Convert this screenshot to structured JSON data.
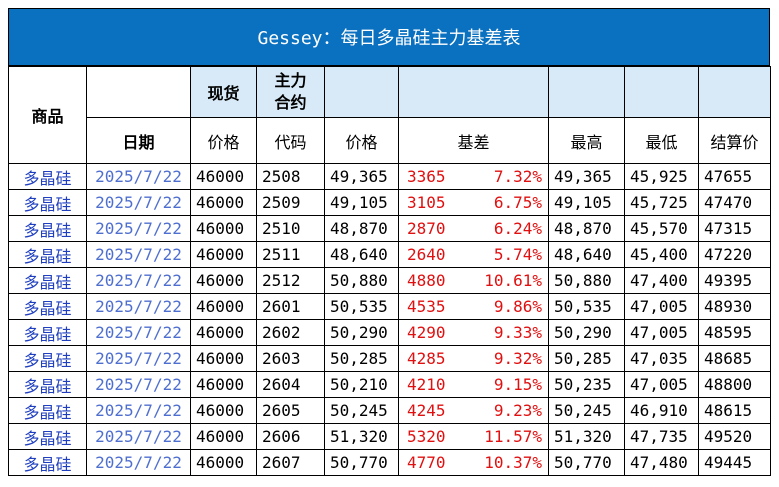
{
  "title": "Gessey：每日多晶硅主力基差表",
  "header": {
    "product": "商品",
    "spot": "现货",
    "contract_main": "主力\n合约",
    "date": "日期",
    "spot_price": "价格",
    "code": "代码",
    "price": "价格",
    "basis": "基差",
    "high": "最高",
    "low": "最低",
    "settle": "结算价"
  },
  "rows": [
    {
      "product": "多晶硅",
      "date": "2025/7/22",
      "spot": "46000",
      "code": "2508",
      "price": "49,365",
      "basis": "3365",
      "pct": "7.32%",
      "high": "49,365",
      "low": "45,925",
      "settle": "47655"
    },
    {
      "product": "多晶硅",
      "date": "2025/7/22",
      "spot": "46000",
      "code": "2509",
      "price": "49,105",
      "basis": "3105",
      "pct": "6.75%",
      "high": "49,105",
      "low": "45,725",
      "settle": "47470"
    },
    {
      "product": "多晶硅",
      "date": "2025/7/22",
      "spot": "46000",
      "code": "2510",
      "price": "48,870",
      "basis": "2870",
      "pct": "6.24%",
      "high": "48,870",
      "low": "45,570",
      "settle": "47315"
    },
    {
      "product": "多晶硅",
      "date": "2025/7/22",
      "spot": "46000",
      "code": "2511",
      "price": "48,640",
      "basis": "2640",
      "pct": "5.74%",
      "high": "48,640",
      "low": "45,400",
      "settle": "47220"
    },
    {
      "product": "多晶硅",
      "date": "2025/7/22",
      "spot": "46000",
      "code": "2512",
      "price": "50,880",
      "basis": "4880",
      "pct": "10.61%",
      "high": "50,880",
      "low": "47,400",
      "settle": "49395"
    },
    {
      "product": "多晶硅",
      "date": "2025/7/22",
      "spot": "46000",
      "code": "2601",
      "price": "50,535",
      "basis": "4535",
      "pct": "9.86%",
      "high": "50,535",
      "low": "47,005",
      "settle": "48930"
    },
    {
      "product": "多晶硅",
      "date": "2025/7/22",
      "spot": "46000",
      "code": "2602",
      "price": "50,290",
      "basis": "4290",
      "pct": "9.33%",
      "high": "50,290",
      "low": "47,005",
      "settle": "48595"
    },
    {
      "product": "多晶硅",
      "date": "2025/7/22",
      "spot": "46000",
      "code": "2603",
      "price": "50,285",
      "basis": "4285",
      "pct": "9.32%",
      "high": "50,285",
      "low": "47,035",
      "settle": "48685"
    },
    {
      "product": "多晶硅",
      "date": "2025/7/22",
      "spot": "46000",
      "code": "2604",
      "price": "50,210",
      "basis": "4210",
      "pct": "9.15%",
      "high": "50,235",
      "low": "47,005",
      "settle": "48800"
    },
    {
      "product": "多晶硅",
      "date": "2025/7/22",
      "spot": "46000",
      "code": "2605",
      "price": "50,245",
      "basis": "4245",
      "pct": "9.23%",
      "high": "50,245",
      "low": "46,910",
      "settle": "48615"
    },
    {
      "product": "多晶硅",
      "date": "2025/7/22",
      "spot": "46000",
      "code": "2606",
      "price": "51,320",
      "basis": "5320",
      "pct": "11.57%",
      "high": "51,320",
      "low": "47,735",
      "settle": "49520"
    },
    {
      "product": "多晶硅",
      "date": "2025/7/22",
      "spot": "46000",
      "code": "2607",
      "price": "50,770",
      "basis": "4770",
      "pct": "10.37%",
      "high": "50,770",
      "low": "47,480",
      "settle": "49445"
    }
  ]
}
